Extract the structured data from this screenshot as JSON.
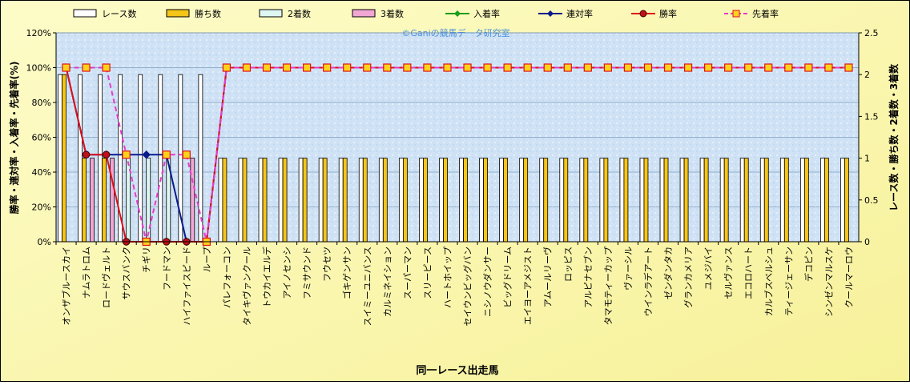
{
  "chart_data": {
    "type": "bar",
    "xlabel": "同一レース出走馬",
    "ylabel_left": "勝率・連対率・入着率・先着率(%)",
    "ylabel_right": "レース数・勝ち数・2着数・3着数",
    "watermark": "©Ganiの競馬データ研究室",
    "legend_position": "top",
    "ylim_left": [
      0,
      120
    ],
    "ylim_right": [
      0,
      2.5
    ],
    "yticks_left": [
      "0%",
      "20%",
      "40%",
      "60%",
      "80%",
      "100%",
      "120%"
    ],
    "yticks_right": [
      "0",
      "0.5",
      "1",
      "1.5",
      "2",
      "2.5"
    ],
    "categories": [
      "オンザブルースカイ",
      "ナムラトロム",
      "ロードヴェルト",
      "サウスバンク",
      "チギリ",
      "フードマン",
      "ハイファイスピード",
      "ループ",
      "パレフォーコン",
      "タイキヴァンクール",
      "トウカイエルデ",
      "アイノセンシ",
      "フミサウンド",
      "フウセツ",
      "ゴキゲンサン",
      "スイミーユニバンス",
      "カルミネイション",
      "スーパーマン",
      "スリーピース",
      "ハートホイップ",
      "セイウンビッグバン",
      "ニシノウダンサー",
      "ビッグドリーム",
      "エイヨーアメジスト",
      "アムールリーヴ",
      "ロッピス",
      "アルピナセブン",
      "タマモティーカップ",
      "ヴァーシル",
      "ウインラデアート",
      "ゼンダンタカ",
      "グランカメリア",
      "ユメジバイ",
      "セルヴァンス",
      "エコロハート",
      "カルブスベルシュ",
      "ティージェーサン",
      "デコピン",
      "シンゼンマルスケ",
      "クールマーロウ"
    ],
    "bar_series": [
      {
        "name": "レース数",
        "color": "#ffffff",
        "values": [
          2,
          2,
          2,
          2,
          2,
          2,
          2,
          2,
          1,
          1,
          1,
          1,
          1,
          1,
          1,
          1,
          1,
          1,
          1,
          1,
          1,
          1,
          1,
          1,
          1,
          1,
          1,
          1,
          1,
          1,
          1,
          1,
          1,
          1,
          1,
          1,
          1,
          1,
          1,
          1
        ]
      },
      {
        "name": "勝ち数",
        "color": "#f5c518",
        "values": [
          2,
          1,
          1,
          0,
          0,
          0,
          0,
          0,
          1,
          1,
          1,
          1,
          1,
          1,
          1,
          1,
          1,
          1,
          1,
          1,
          1,
          1,
          1,
          1,
          1,
          1,
          1,
          1,
          1,
          1,
          1,
          1,
          1,
          1,
          1,
          1,
          1,
          1,
          1,
          1
        ]
      },
      {
        "name": "2着数",
        "color": "#dff7f2",
        "values": [
          0,
          0,
          0,
          1,
          1,
          1,
          0,
          0,
          0,
          0,
          0,
          0,
          0,
          0,
          0,
          0,
          0,
          0,
          0,
          0,
          0,
          0,
          0,
          0,
          0,
          0,
          0,
          0,
          0,
          0,
          0,
          0,
          0,
          0,
          0,
          0,
          0,
          0,
          0,
          0
        ]
      },
      {
        "name": "3着数",
        "color": "#f2a6d4",
        "values": [
          0,
          1,
          1,
          0,
          0,
          0,
          1,
          0,
          0,
          0,
          0,
          0,
          0,
          0,
          0,
          0,
          0,
          0,
          0,
          0,
          0,
          0,
          0,
          0,
          0,
          0,
          0,
          0,
          0,
          0,
          0,
          0,
          0,
          0,
          0,
          0,
          0,
          0,
          0,
          0
        ]
      }
    ],
    "line_series": [
      {
        "name": "入着率",
        "color": "#1a9e1a",
        "marker": "diamond",
        "dashed": false,
        "values": []
      },
      {
        "name": "連対率",
        "color": "#0a1a8c",
        "marker": "diamond",
        "dashed": false,
        "values": [
          100,
          50,
          50,
          50,
          50,
          50,
          0,
          0,
          100,
          100,
          100,
          100,
          100,
          100,
          100,
          100,
          100,
          100,
          100,
          100,
          100,
          100,
          100,
          100,
          100,
          100,
          100,
          100,
          100,
          100,
          100,
          100,
          100,
          100,
          100,
          100,
          100,
          100,
          100,
          100
        ]
      },
      {
        "name": "勝率",
        "color": "#e0101a",
        "marker": "circle",
        "dashed": false,
        "values": [
          100,
          50,
          50,
          0,
          0,
          0,
          0,
          0,
          100,
          100,
          100,
          100,
          100,
          100,
          100,
          100,
          100,
          100,
          100,
          100,
          100,
          100,
          100,
          100,
          100,
          100,
          100,
          100,
          100,
          100,
          100,
          100,
          100,
          100,
          100,
          100,
          100,
          100,
          100,
          100
        ]
      },
      {
        "name": "先着率",
        "color": "#e63cc8",
        "marker": "square",
        "dashed": true,
        "values": [
          100,
          100,
          100,
          50,
          0,
          50,
          50,
          0,
          100,
          100,
          100,
          100,
          100,
          100,
          100,
          100,
          100,
          100,
          100,
          100,
          100,
          100,
          100,
          100,
          100,
          100,
          100,
          100,
          100,
          100,
          100,
          100,
          100,
          100,
          100,
          100,
          100,
          100,
          100,
          100
        ]
      }
    ]
  }
}
